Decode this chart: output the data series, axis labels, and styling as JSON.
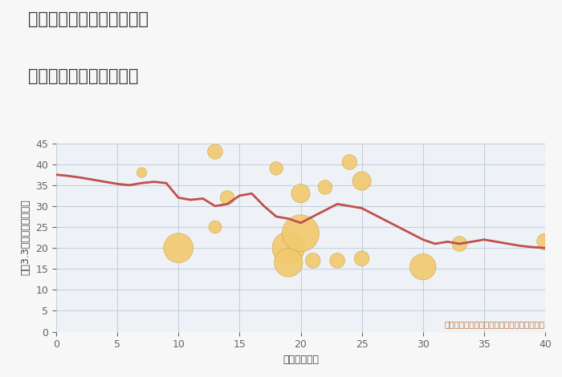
{
  "title_line1": "兵庫県姫路市安富町安志の",
  "title_line2": "築年数別中古戸建て価格",
  "xlabel": "築年数（年）",
  "ylabel": "坪（3.3㎡）単価（万円）",
  "xlim": [
    0,
    40
  ],
  "ylim": [
    0,
    45
  ],
  "xticks": [
    0,
    5,
    10,
    15,
    20,
    25,
    30,
    35,
    40
  ],
  "yticks": [
    0,
    5,
    10,
    15,
    20,
    25,
    30,
    35,
    40,
    45
  ],
  "fig_bg_color": "#f7f7f7",
  "plot_bg_color": "#eef2f7",
  "grid_color": "#c5d0dc",
  "line_color": "#c0504d",
  "scatter_color": "#f2c96e",
  "scatter_edge_color": "#c8a040",
  "annotation_color": "#c07030",
  "title_color": "#333333",
  "annotation_text": "円の大きさは、取引のあった物件面積を示す",
  "line_x": [
    0,
    1,
    2,
    3,
    4,
    5,
    6,
    7,
    8,
    9,
    10,
    11,
    12,
    13,
    14,
    15,
    16,
    17,
    18,
    19,
    20,
    21,
    22,
    23,
    24,
    25,
    26,
    27,
    28,
    29,
    30,
    31,
    32,
    33,
    34,
    35,
    36,
    37,
    38,
    39,
    40
  ],
  "line_y": [
    37.5,
    37.2,
    36.8,
    36.3,
    35.8,
    35.3,
    35.0,
    35.5,
    35.8,
    35.5,
    32.0,
    31.5,
    31.8,
    30.0,
    30.5,
    32.5,
    33.0,
    30.0,
    27.5,
    27.0,
    26.0,
    27.5,
    29.0,
    30.5,
    30.0,
    29.5,
    28.0,
    26.5,
    25.0,
    23.5,
    22.0,
    21.0,
    21.5,
    21.0,
    21.5,
    22.0,
    21.5,
    21.0,
    20.5,
    20.2,
    20.0
  ],
  "scatter_x": [
    7,
    10,
    13,
    13,
    14,
    18,
    19,
    19,
    20,
    20,
    21,
    22,
    23,
    24,
    25,
    25,
    30,
    33,
    40
  ],
  "scatter_y": [
    38.0,
    20.0,
    43.0,
    25.0,
    32.0,
    39.0,
    20.0,
    16.5,
    33.0,
    23.5,
    17.0,
    34.5,
    17.0,
    40.5,
    36.0,
    17.5,
    15.5,
    21.0,
    21.5
  ],
  "scatter_sizes": [
    80,
    700,
    180,
    130,
    160,
    140,
    850,
    650,
    280,
    1100,
    180,
    160,
    180,
    180,
    280,
    180,
    550,
    180,
    220
  ]
}
